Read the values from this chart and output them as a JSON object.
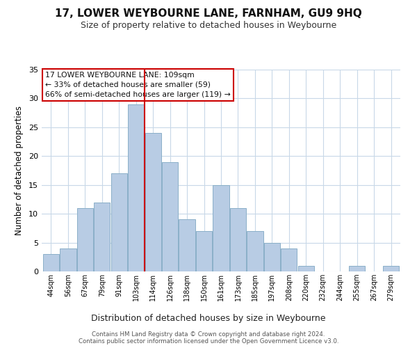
{
  "title": "17, LOWER WEYBOURNE LANE, FARNHAM, GU9 9HQ",
  "subtitle": "Size of property relative to detached houses in Weybourne",
  "xlabel": "Distribution of detached houses by size in Weybourne",
  "ylabel": "Number of detached properties",
  "bar_labels": [
    "44sqm",
    "56sqm",
    "67sqm",
    "79sqm",
    "91sqm",
    "103sqm",
    "114sqm",
    "126sqm",
    "138sqm",
    "150sqm",
    "161sqm",
    "173sqm",
    "185sqm",
    "197sqm",
    "208sqm",
    "220sqm",
    "232sqm",
    "244sqm",
    "255sqm",
    "267sqm",
    "279sqm"
  ],
  "bar_values": [
    3,
    4,
    11,
    12,
    17,
    29,
    24,
    19,
    9,
    7,
    15,
    11,
    7,
    5,
    4,
    1,
    0,
    0,
    1,
    0,
    1
  ],
  "bar_color": "#b8cce4",
  "bar_edge_color": "#8aafc8",
  "vline_x": 5.5,
  "vline_color": "#cc0000",
  "ylim": [
    0,
    35
  ],
  "yticks": [
    0,
    5,
    10,
    15,
    20,
    25,
    30,
    35
  ],
  "annotation_title": "17 LOWER WEYBOURNE LANE: 109sqm",
  "annotation_line1": "← 33% of detached houses are smaller (59)",
  "annotation_line2": "66% of semi-detached houses are larger (119) →",
  "annotation_box_color": "#ffffff",
  "annotation_box_edge_color": "#cc0000",
  "footer_line1": "Contains HM Land Registry data © Crown copyright and database right 2024.",
  "footer_line2": "Contains public sector information licensed under the Open Government Licence v3.0.",
  "background_color": "#ffffff",
  "grid_color": "#c8d8e8"
}
